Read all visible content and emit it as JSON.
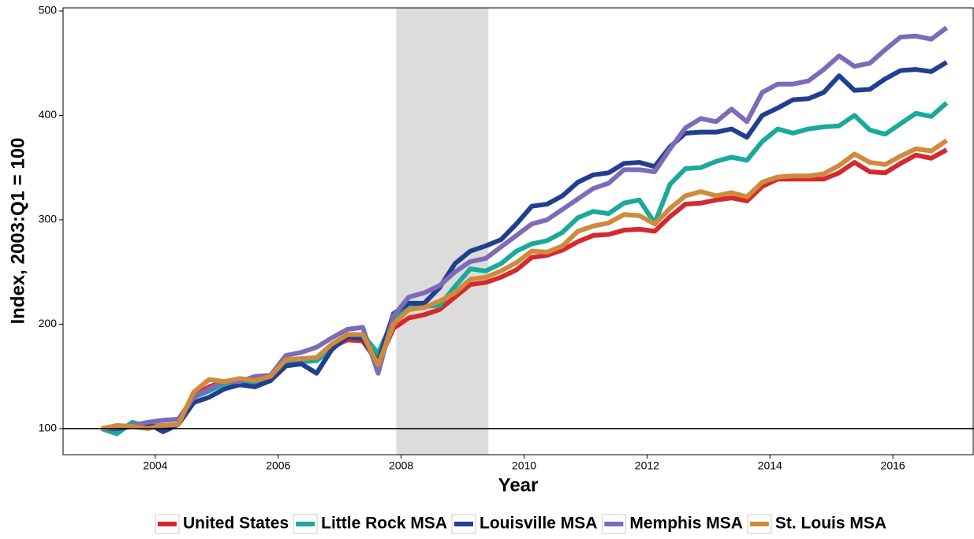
{
  "chart_data": {
    "type": "line",
    "x_label": "Year",
    "y_label": "Index, 2003:Q1 = 100",
    "x": [
      2003.125,
      2003.375,
      2003.625,
      2003.875,
      2004.125,
      2004.375,
      2004.625,
      2004.875,
      2005.125,
      2005.375,
      2005.625,
      2005.875,
      2006.125,
      2006.375,
      2006.625,
      2006.875,
      2007.125,
      2007.375,
      2007.625,
      2007.875,
      2008.125,
      2008.375,
      2008.625,
      2008.875,
      2009.125,
      2009.375,
      2009.625,
      2009.875,
      2010.125,
      2010.375,
      2010.625,
      2010.875,
      2011.125,
      2011.375,
      2011.625,
      2011.875,
      2012.125,
      2012.375,
      2012.625,
      2012.875,
      2013.125,
      2013.375,
      2013.625,
      2013.875,
      2014.125,
      2014.375,
      2014.625,
      2014.875,
      2015.125,
      2015.375,
      2015.625,
      2015.875,
      2016.125,
      2016.375,
      2016.625,
      2016.875
    ],
    "series": [
      {
        "name": "United States",
        "color": "#d42a2e",
        "values": [
          100,
          102,
          102,
          101,
          102,
          104,
          132,
          140,
          145,
          146,
          145,
          148,
          163,
          165,
          166,
          178,
          185,
          184,
          163,
          196,
          206,
          209,
          214,
          226,
          238,
          240,
          245,
          252,
          264,
          266,
          271,
          279,
          285,
          286,
          290,
          291,
          289,
          303,
          315,
          316,
          319,
          321,
          318,
          332,
          339,
          339,
          339,
          339,
          345,
          355,
          346,
          345,
          354,
          362,
          359,
          367
        ]
      },
      {
        "name": "Little Rock MSA",
        "color": "#1aaa9c",
        "values": [
          100,
          95,
          106,
          102,
          103,
          104,
          130,
          136,
          143,
          146,
          144,
          148,
          162,
          164,
          165,
          177,
          190,
          190,
          172,
          205,
          215,
          217,
          218,
          236,
          253,
          251,
          258,
          270,
          277,
          280,
          288,
          302,
          308,
          306,
          316,
          319,
          297,
          334,
          349,
          350,
          356,
          360,
          357,
          375,
          387,
          383,
          387,
          389,
          390,
          400,
          386,
          382,
          392,
          402,
          399,
          412
        ]
      },
      {
        "name": "Louisville MSA",
        "color": "#203f91",
        "values": [
          100,
          100,
          102,
          105,
          97,
          104,
          125,
          130,
          138,
          142,
          140,
          146,
          160,
          162,
          153,
          176,
          188,
          186,
          164,
          210,
          220,
          220,
          235,
          258,
          270,
          275,
          281,
          296,
          313,
          315,
          323,
          336,
          343,
          345,
          354,
          355,
          351,
          370,
          383,
          384,
          384,
          387,
          379,
          400,
          407,
          415,
          416,
          422,
          438,
          424,
          425,
          435,
          443,
          444,
          442,
          451
        ]
      },
      {
        "name": "Memphis MSA",
        "color": "#7e6bb8",
        "values": [
          100,
          101,
          103,
          106,
          108,
          109,
          130,
          138,
          145,
          145,
          150,
          151,
          170,
          173,
          178,
          187,
          195,
          197,
          153,
          208,
          226,
          230,
          237,
          250,
          260,
          263,
          274,
          285,
          296,
          300,
          310,
          320,
          330,
          335,
          348,
          348,
          346,
          368,
          388,
          397,
          394,
          406,
          394,
          422,
          430,
          430,
          433,
          444,
          457,
          447,
          450,
          463,
          475,
          476,
          473,
          484
        ]
      },
      {
        "name": "St. Louis MSA",
        "color": "#d08a3c",
        "values": [
          100,
          103,
          102,
          100,
          103,
          104,
          135,
          147,
          145,
          148,
          146,
          150,
          166,
          167,
          168,
          181,
          190,
          190,
          161,
          200,
          214,
          216,
          222,
          230,
          243,
          245,
          251,
          259,
          270,
          269,
          275,
          289,
          294,
          297,
          305,
          304,
          296,
          311,
          323,
          327,
          323,
          326,
          322,
          336,
          341,
          342,
          342,
          344,
          352,
          363,
          355,
          353,
          361,
          368,
          366,
          376
        ]
      }
    ],
    "xlim": [
      2002.5,
      2017.32
    ],
    "xticks": [
      2004,
      2006,
      2008,
      2010,
      2012,
      2014,
      2016
    ],
    "ylim": [
      75,
      503
    ],
    "yticks": [
      100,
      200,
      300,
      400,
      500
    ],
    "reference_line": 100,
    "shaded_region": [
      2007.92,
      2009.42
    ],
    "legend": "bottom"
  }
}
